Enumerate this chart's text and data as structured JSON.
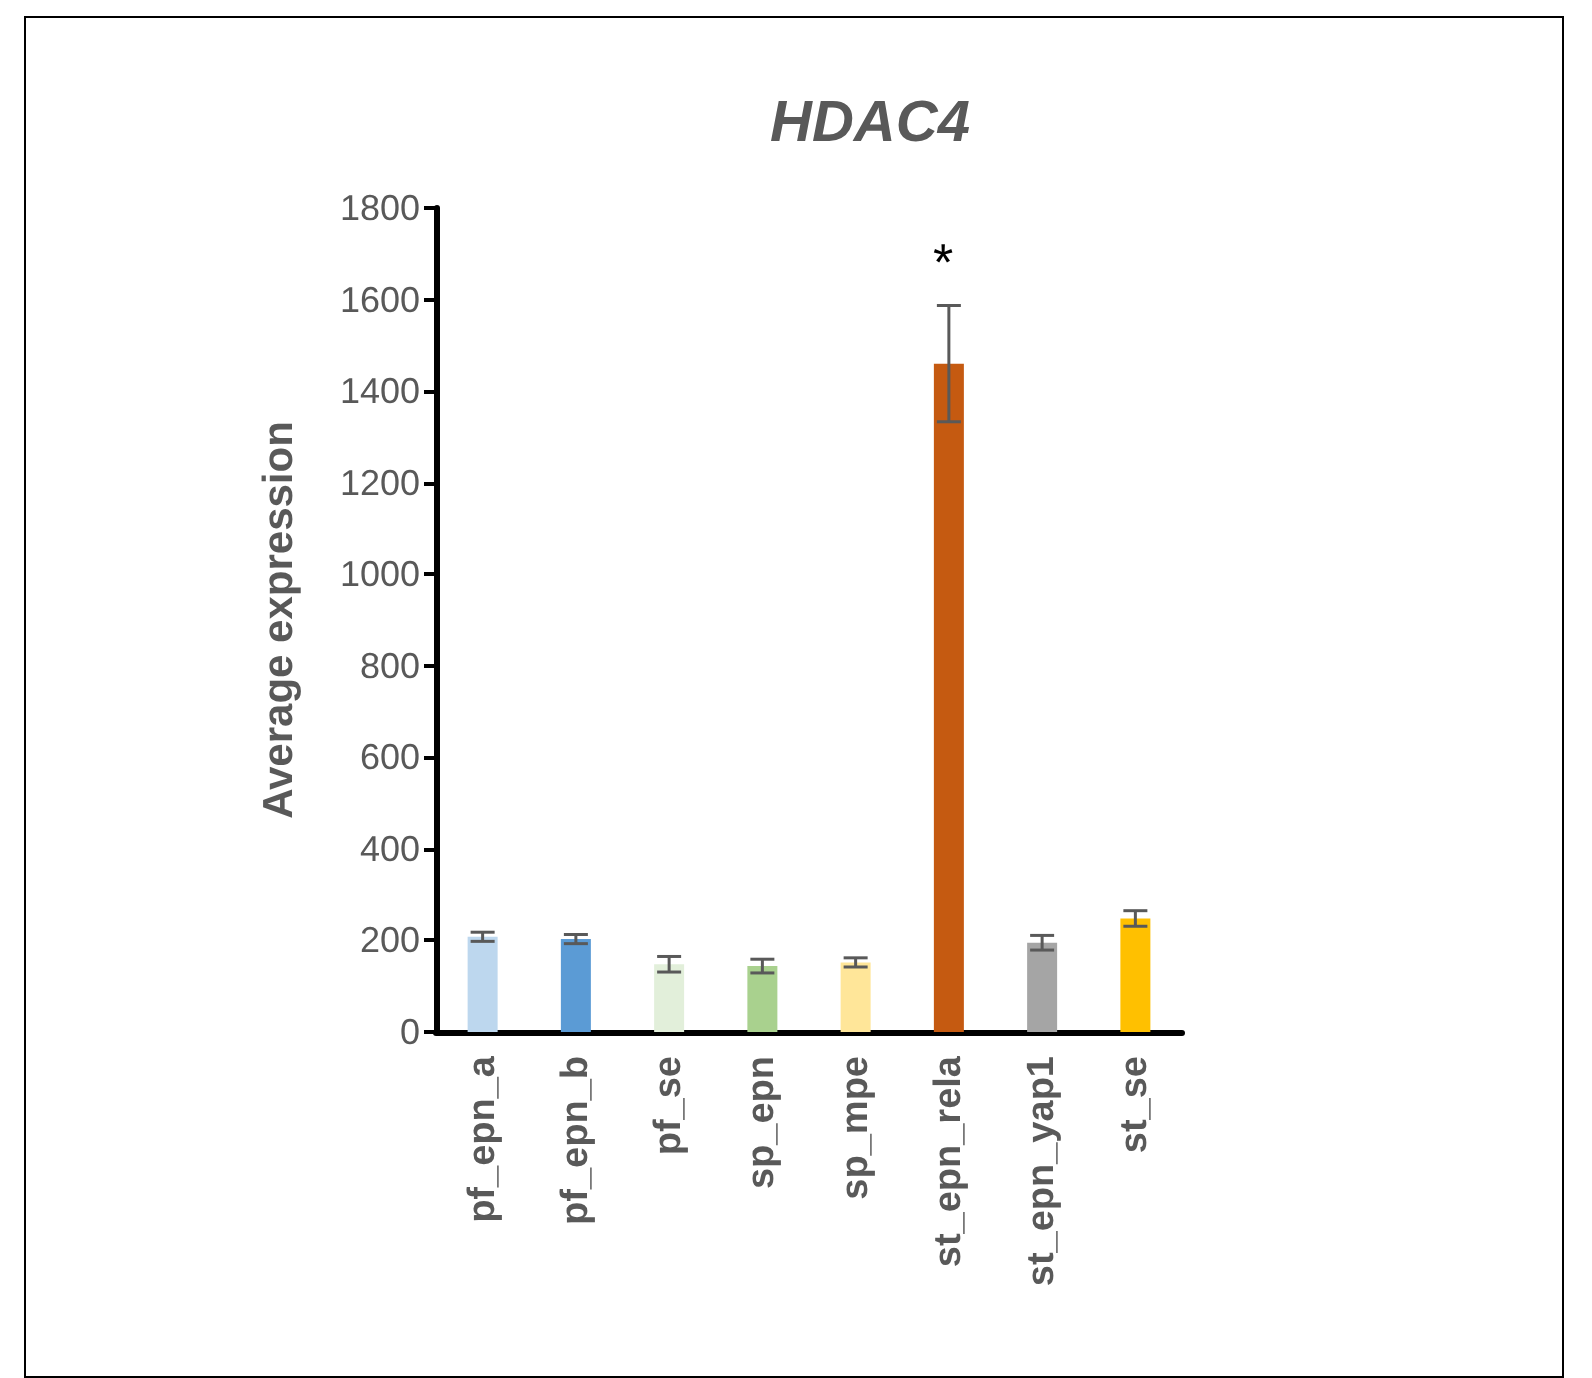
{
  "chart_data": {
    "type": "bar",
    "title": "HDAC4",
    "ylabel": "Average expression",
    "categories": [
      "pf_epn_a",
      "pf_epn_b",
      "pf_se",
      "sp_epn",
      "sp_mpe",
      "st_epn_rela",
      "st_epn_yap1",
      "st_se"
    ],
    "values": [
      208,
      203,
      148,
      144,
      152,
      1460,
      195,
      248
    ],
    "colors": [
      "#bdd7ee",
      "#5b9bd5",
      "#e2efda",
      "#a9d18e",
      "#ffe699",
      "#c55a11",
      "#a5a5a5",
      "#ffc000"
    ],
    "errors": [
      10,
      10,
      17,
      15,
      10,
      127,
      16,
      17
    ],
    "ylim": [
      0,
      1800
    ],
    "yticks": [
      0,
      200,
      400,
      600,
      800,
      1000,
      1200,
      1400,
      1600,
      1800
    ],
    "grid": false,
    "annotations": [
      "*"
    ]
  }
}
